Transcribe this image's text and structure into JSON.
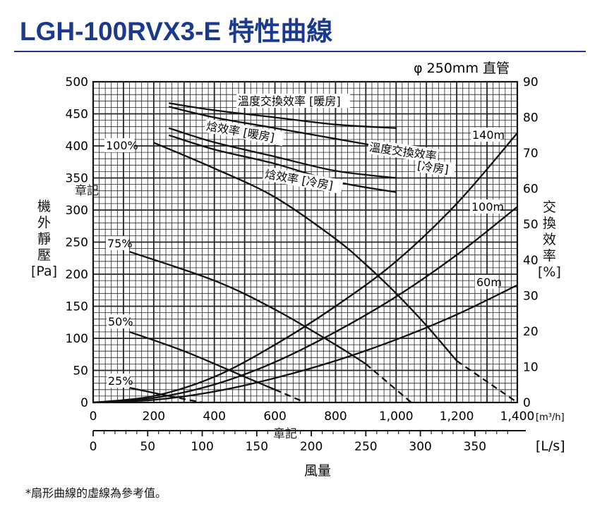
{
  "title": "LGH-100RVX3-E 特性曲線",
  "duct": "φ 250mm 直管",
  "footnote": "*扇形曲線的虛線為參考值。",
  "stamps": [
    "章記",
    "章記"
  ],
  "chart_data": {
    "type": "line",
    "xlabel": "風量",
    "x_unit": "[m³/h]",
    "x2_unit": "[L/s]",
    "ylabel_left": [
      "機",
      "外",
      "靜",
      "壓",
      "[Pa]"
    ],
    "ylabel_right": [
      "交",
      "換",
      "效",
      "率",
      "[%]"
    ],
    "xlim": [
      0,
      1400
    ],
    "ylim_left": [
      0,
      500
    ],
    "ylim_right": [
      0,
      90
    ],
    "x_ticks": [
      0,
      200,
      400,
      600,
      800,
      1000,
      1200,
      1400
    ],
    "x_tick_labels": [
      "0",
      "200",
      "400",
      "600",
      "800",
      "1,000",
      "1,200",
      "1,400"
    ],
    "x2_ticks": [
      0,
      50,
      100,
      150,
      200,
      250,
      300,
      350
    ],
    "y_left_ticks": [
      0,
      50,
      100,
      150,
      200,
      250,
      300,
      350,
      400,
      450,
      500
    ],
    "y_right_ticks": [
      0,
      10,
      20,
      30,
      40,
      50,
      60,
      70,
      80,
      90
    ],
    "grid": true,
    "fan_curves": [
      {
        "name": "100%",
        "x": [
          200,
          400,
          600,
          800,
          900,
          1000,
          1100,
          1200
        ],
        "y": [
          405,
          365,
          320,
          255,
          215,
          170,
          120,
          65
        ],
        "dashed_x": [
          1200,
          1400
        ],
        "dashed_y": [
          65,
          0
        ]
      },
      {
        "name": "75%",
        "x": [
          120,
          400,
          600,
          800,
          900
        ],
        "y": [
          235,
          190,
          145,
          90,
          60
        ],
        "dashed_x": [
          900,
          1050
        ],
        "dashed_y": [
          60,
          0
        ]
      },
      {
        "name": "50%",
        "x": [
          120,
          300,
          500,
          600
        ],
        "y": [
          110,
          80,
          40,
          20
        ],
        "dashed_x": [
          600,
          700
        ],
        "dashed_y": [
          20,
          0
        ]
      },
      {
        "name": "25%",
        "x": [
          120,
          250
        ],
        "y": [
          23,
          10
        ],
        "dashed_x": [
          250,
          360
        ],
        "dashed_y": [
          10,
          0
        ]
      }
    ],
    "duct_curves": [
      {
        "name": "140m",
        "x": [
          0,
          200,
          400,
          600,
          800,
          1000,
          1200,
          1400
        ],
        "y": [
          0,
          10,
          40,
          90,
          150,
          220,
          310,
          420
        ]
      },
      {
        "name": "100m",
        "x": [
          0,
          200,
          400,
          600,
          800,
          1000,
          1200,
          1400
        ],
        "y": [
          0,
          7,
          28,
          63,
          110,
          165,
          230,
          305
        ]
      },
      {
        "name": "60m",
        "x": [
          0,
          200,
          400,
          600,
          800,
          1000,
          1200,
          1400
        ],
        "y": [
          0,
          4,
          17,
          38,
          65,
          98,
          137,
          183
        ]
      }
    ],
    "efficiency_curves": [
      {
        "name": "溫度交換效率 [暖房]",
        "x": [
          250,
          400,
          600,
          800,
          1000
        ],
        "y": [
          84,
          82,
          80,
          78,
          77
        ]
      },
      {
        "name": "溫度交換效率 [冷房]",
        "x": [
          250,
          400,
          600,
          800,
          1000
        ],
        "y": [
          83,
          80,
          77,
          74,
          71
        ]
      },
      {
        "name": "焓效率 [暖房]",
        "x": [
          250,
          400,
          600,
          800,
          1000
        ],
        "y": [
          77,
          73,
          69,
          65,
          63
        ]
      },
      {
        "name": "焓效率 [冷房]",
        "x": [
          250,
          400,
          600,
          800,
          1000
        ],
        "y": [
          75,
          71,
          67,
          62,
          59
        ]
      }
    ]
  }
}
